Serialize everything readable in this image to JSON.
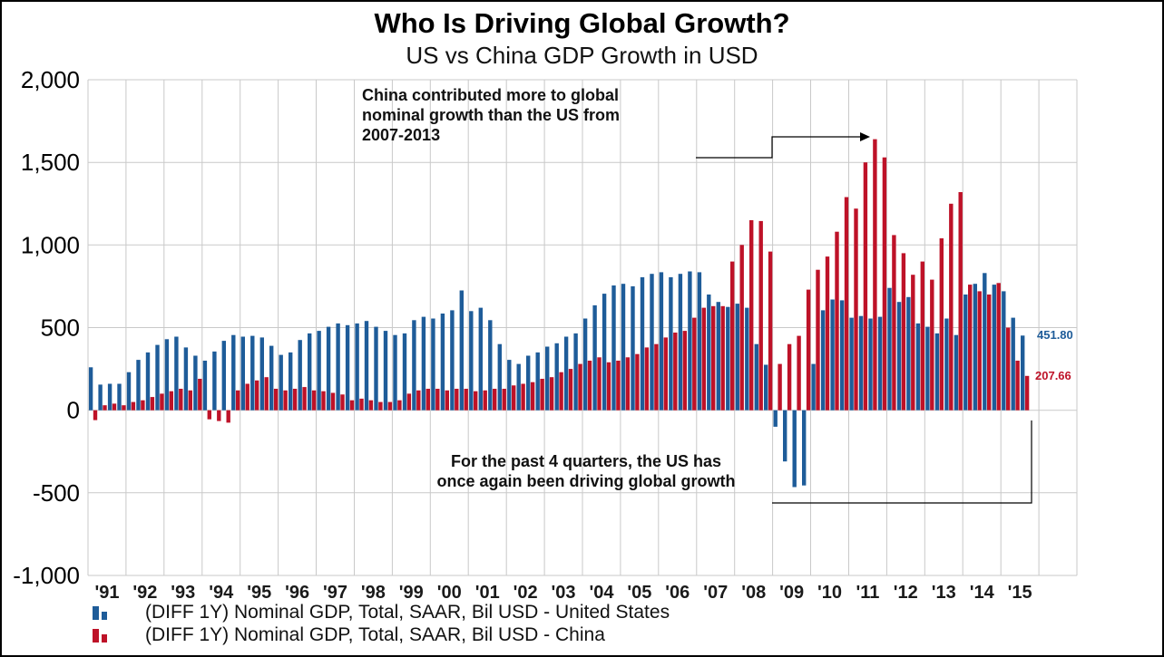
{
  "figure": {
    "title": "Who Is Driving Global Growth?",
    "subtitle": "US vs China GDP Growth in USD"
  },
  "annotations": {
    "top": "China contributed more to global\nnominal growth than the US from\n2007-2013",
    "bottom": "For the past 4 quarters, the US has\nonce again been driving global growth"
  },
  "end_labels": {
    "us": "451.80",
    "china": "207.66"
  },
  "legend": [
    {
      "key": "us",
      "label": "(DIFF 1Y) Nominal GDP, Total, SAAR, Bil USD - United States",
      "color": "#1E5C99"
    },
    {
      "key": "china",
      "label": "(DIFF 1Y) Nominal GDP, Total, SAAR, Bil USD - China",
      "color": "#BE1228"
    }
  ],
  "chart_data": {
    "type": "bar",
    "title": "Who Is Driving Global Growth?",
    "subtitle": "US vs China GDP Growth in USD",
    "frequency": "quarterly",
    "start": "1991 Q1",
    "end": "2015 Q3",
    "categories": [
      "'91",
      "'92",
      "'93",
      "'94",
      "'95",
      "'96",
      "'97",
      "'98",
      "'99",
      "'00",
      "'01",
      "'02",
      "'03",
      "'04",
      "'05",
      "'06",
      "'07",
      "'08",
      "'09",
      "'10",
      "'11",
      "'12",
      "'13",
      "'14",
      "'15"
    ],
    "ylim": [
      -1000,
      2000
    ],
    "yticks": [
      -1000,
      -500,
      0,
      500,
      1000,
      1500,
      2000
    ],
    "grid": true,
    "legend_position": "bottom",
    "series": [
      {
        "name": "United States",
        "color": "#1E5C99",
        "values": [
          260,
          155,
          160,
          160,
          230,
          305,
          350,
          395,
          430,
          445,
          380,
          330,
          300,
          355,
          420,
          455,
          445,
          450,
          440,
          390,
          335,
          350,
          425,
          465,
          480,
          505,
          525,
          515,
          525,
          540,
          505,
          480,
          455,
          465,
          545,
          565,
          555,
          585,
          605,
          725,
          600,
          620,
          545,
          400,
          305,
          280,
          330,
          350,
          385,
          405,
          445,
          465,
          555,
          635,
          705,
          755,
          765,
          750,
          805,
          825,
          835,
          805,
          825,
          840,
          835,
          700,
          655,
          625,
          645,
          620,
          400,
          275,
          -100,
          -310,
          -465,
          -455,
          280,
          605,
          670,
          665,
          560,
          570,
          555,
          565,
          740,
          655,
          685,
          525,
          505,
          465,
          555,
          455,
          700,
          765,
          830,
          760,
          720,
          560,
          451.8
        ]
      },
      {
        "name": "China",
        "color": "#BE1228",
        "values": [
          -60,
          30,
          40,
          30,
          50,
          60,
          80,
          100,
          115,
          130,
          120,
          190,
          -55,
          -65,
          -75,
          120,
          160,
          180,
          200,
          130,
          120,
          130,
          140,
          120,
          115,
          105,
          95,
          60,
          70,
          60,
          50,
          50,
          60,
          100,
          120,
          130,
          130,
          120,
          130,
          130,
          115,
          120,
          130,
          130,
          150,
          160,
          170,
          190,
          200,
          230,
          250,
          280,
          300,
          320,
          290,
          300,
          320,
          340,
          380,
          400,
          440,
          470,
          480,
          560,
          620,
          630,
          630,
          900,
          1000,
          1150,
          1145,
          960,
          280,
          400,
          450,
          730,
          850,
          930,
          1080,
          1290,
          1220,
          1500,
          1640,
          1530,
          1060,
          950,
          820,
          900,
          790,
          1040,
          1250,
          1320,
          760,
          720,
          700,
          770,
          500,
          300,
          207.66
        ]
      }
    ]
  }
}
